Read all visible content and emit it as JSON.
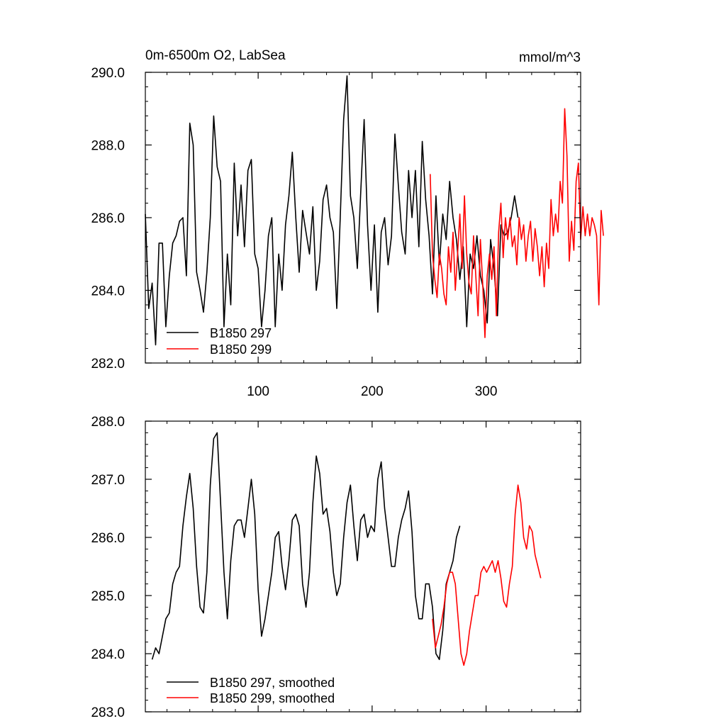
{
  "chart_data": [
    {
      "type": "line",
      "title_left": "0m-6500m O2, LabSea",
      "title_right": "mmol/m^3",
      "xlim": [
        1,
        383
      ],
      "ylim": [
        282.0,
        290.0
      ],
      "x_ticks": [
        100,
        200,
        300
      ],
      "x_tick_labels": [
        "100",
        "200",
        "300"
      ],
      "y_ticks": [
        282.0,
        284.0,
        286.0,
        288.0,
        290.0
      ],
      "y_tick_labels": [
        "282.0",
        "284.0",
        "286.0",
        "288.0",
        "290.0"
      ],
      "legend": "bottom-left",
      "series": [
        {
          "name": "B1850 297",
          "color": "#000000",
          "x_start": 1,
          "x_step": 3,
          "values": [
            286.1,
            283.5,
            284.2,
            282.5,
            285.3,
            285.3,
            283.0,
            284.4,
            285.3,
            285.5,
            285.9,
            286.0,
            284.4,
            288.6,
            288.0,
            284.5,
            284.0,
            283.4,
            284.5,
            286.0,
            288.8,
            287.4,
            287.0,
            283.0,
            285.0,
            283.6,
            287.5,
            285.5,
            286.9,
            285.2,
            287.3,
            287.6,
            285.0,
            284.6,
            283.0,
            284.0,
            285.5,
            286.0,
            283.0,
            285.0,
            284.0,
            285.8,
            286.6,
            287.8,
            286.0,
            284.5,
            286.2,
            285.6,
            285.0,
            286.3,
            284.0,
            284.8,
            286.5,
            286.9,
            286.0,
            285.6,
            283.5,
            286.0,
            288.7,
            289.9,
            286.6,
            286.0,
            284.6,
            286.7,
            288.7,
            285.8,
            284.0,
            285.8,
            283.4,
            285.6,
            286.0,
            284.7,
            285.5,
            288.3,
            286.9,
            285.6,
            285.0,
            287.3,
            286.0,
            287.3,
            285.2,
            288.1,
            286.5,
            285.5,
            283.9,
            286.6,
            284.7,
            286.1,
            285.4,
            287.0,
            286.0,
            285.4,
            284.3,
            285.2,
            283.0,
            285.0,
            284.6,
            285.5,
            284.4,
            284.0,
            283.1,
            285.4,
            284.6,
            283.3,
            285.8,
            285.5,
            285.6,
            286.0,
            286.6,
            286.0
          ]
        },
        {
          "name": "B1850 299",
          "color": "#ff0000",
          "x_start": 251,
          "x_step": 2,
          "values": [
            287.2,
            285.0,
            284.3,
            283.8,
            285.0,
            284.6,
            283.9,
            283.6,
            285.2,
            284.5,
            285.6,
            284.0,
            285.0,
            286.1,
            284.6,
            286.6,
            285.0,
            284.2,
            283.9,
            285.5,
            284.4,
            283.3,
            285.4,
            284.2,
            282.7,
            284.4,
            285.0,
            284.3,
            285.2,
            283.3,
            285.6,
            286.4,
            284.9,
            286.0,
            285.4,
            286.0,
            285.2,
            285.5,
            284.7,
            286.0,
            285.4,
            285.8,
            284.8,
            285.5,
            285.9,
            284.8,
            285.7,
            285.2,
            284.4,
            285.2,
            284.1,
            285.3,
            284.6,
            286.5,
            285.5,
            286.1,
            285.6,
            287.0,
            286.4,
            289.0,
            287.7,
            284.8,
            285.9,
            285.1,
            287.0,
            287.5,
            285.4,
            286.3,
            285.5,
            286.1,
            285.5,
            286.0,
            285.8,
            285.5,
            283.6,
            286.2,
            285.5
          ]
        }
      ]
    },
    {
      "type": "line",
      "xlim": [
        1,
        383
      ],
      "ylim": [
        283.0,
        288.0
      ],
      "x_ticks": [
        100,
        200,
        300
      ],
      "y_ticks": [
        283.0,
        284.0,
        285.0,
        286.0,
        287.0,
        288.0
      ],
      "y_tick_labels": [
        "283.0",
        "284.0",
        "285.0",
        "286.0",
        "287.0",
        "288.0"
      ],
      "legend": "bottom-left",
      "series": [
        {
          "name": "B1850 297, smoothed",
          "color": "#000000",
          "x_start": 7,
          "x_step": 3,
          "values": [
            283.9,
            284.1,
            284.0,
            284.3,
            284.6,
            284.7,
            285.2,
            285.4,
            285.5,
            286.2,
            286.7,
            287.1,
            286.5,
            285.5,
            284.8,
            284.7,
            285.4,
            286.9,
            287.7,
            287.8,
            286.6,
            285.4,
            284.6,
            285.6,
            286.2,
            286.3,
            286.3,
            286.0,
            286.5,
            287.0,
            286.4,
            285.1,
            284.3,
            284.6,
            285.0,
            285.4,
            286.0,
            286.1,
            285.5,
            285.1,
            285.6,
            286.3,
            286.4,
            286.2,
            285.2,
            284.8,
            285.4,
            286.6,
            287.4,
            287.1,
            286.4,
            286.5,
            286.1,
            285.4,
            285.0,
            285.2,
            286.0,
            286.6,
            286.9,
            286.2,
            285.6,
            286.3,
            286.4,
            286.0,
            286.2,
            286.1,
            287.0,
            287.3,
            286.5,
            286.0,
            285.5,
            285.5,
            286.0,
            286.3,
            286.5,
            286.8,
            286.1,
            285.0,
            284.6,
            284.6,
            285.2,
            285.2,
            284.8,
            284.0,
            283.9,
            284.4,
            285.2,
            285.4,
            285.6,
            286.0,
            286.2
          ]
        },
        {
          "name": "B1850 299, smoothed",
          "color": "#ff0000",
          "x_start": 253,
          "x_step": 2.5,
          "values": [
            284.6,
            284.1,
            284.3,
            284.5,
            284.8,
            285.2,
            285.4,
            285.4,
            285.2,
            284.6,
            284.0,
            283.8,
            284.0,
            284.4,
            284.7,
            285.0,
            285.0,
            285.4,
            285.5,
            285.4,
            285.5,
            285.6,
            285.4,
            285.6,
            285.3,
            284.9,
            284.8,
            285.2,
            285.5,
            286.4,
            286.9,
            286.6,
            286.0,
            285.8,
            286.2,
            286.1,
            285.7,
            285.5,
            285.3
          ]
        }
      ]
    }
  ]
}
